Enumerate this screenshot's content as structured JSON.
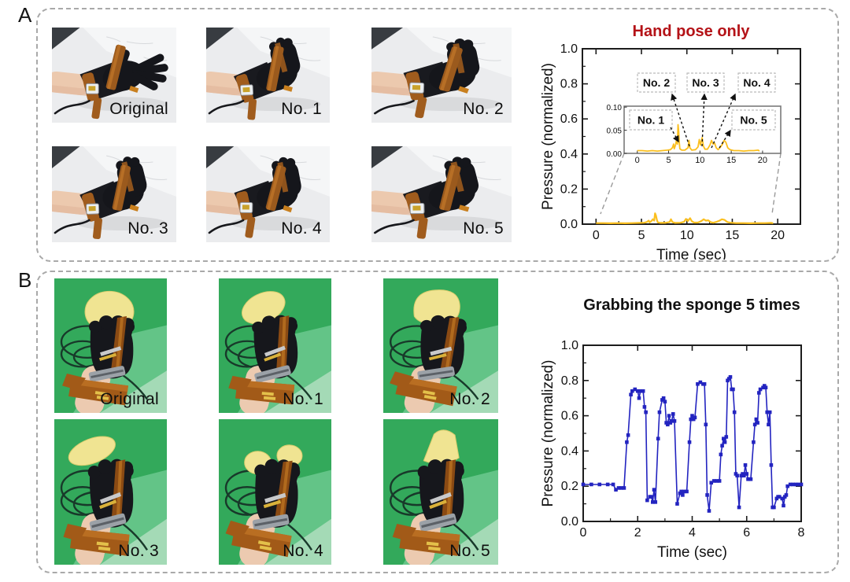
{
  "panel_a": {
    "label": "A",
    "photos": [
      "Original",
      "No. 1",
      "No. 2",
      "No. 3",
      "No. 4",
      "No. 5"
    ]
  },
  "panel_b": {
    "label": "B",
    "photos": [
      "Original",
      "No. 1",
      "No. 2",
      "No. 3",
      "No. 4",
      "No. 5"
    ]
  },
  "colors": {
    "panel_border": "#a9a9a9",
    "chart_a_line": "#fbbf1e",
    "chart_b_line": "#2324c0",
    "title_a_red": "#b41217",
    "title_b_black": "#111111"
  },
  "chart_data": [
    {
      "type": "line",
      "title": "Hand pose only",
      "title_color": "#b41217",
      "xlabel": "Time (sec)",
      "ylabel": "Pressure (normalized)",
      "xlim": [
        -1.5,
        22.5
      ],
      "ylim": [
        0,
        1
      ],
      "xticks": [
        "0",
        "5",
        "10",
        "15",
        "20"
      ],
      "yticks": [
        "0.0",
        "0.2",
        "0.4",
        "0.6",
        "0.8",
        "1.0"
      ],
      "line_color": "#fbbf1e",
      "points": [
        [
          0,
          0.006
        ],
        [
          0.8,
          0.006
        ],
        [
          1.6,
          0.005
        ],
        [
          2.4,
          0.006
        ],
        [
          3.2,
          0.005
        ],
        [
          4,
          0.006
        ],
        [
          4.8,
          0.007
        ],
        [
          5.3,
          0.008
        ],
        [
          5.6,
          0.012
        ],
        [
          5.8,
          0.02
        ],
        [
          5.9,
          0.01
        ],
        [
          6.1,
          0.018
        ],
        [
          6.25,
          0.028
        ],
        [
          6.4,
          0.02
        ],
        [
          6.5,
          0.062
        ],
        [
          6.6,
          0.048
        ],
        [
          6.7,
          0.025
        ],
        [
          6.8,
          0.01
        ],
        [
          7.1,
          0.007
        ],
        [
          7.6,
          0.007
        ],
        [
          8.1,
          0.012
        ],
        [
          8.25,
          0.028
        ],
        [
          8.4,
          0.012
        ],
        [
          8.7,
          0.007
        ],
        [
          9.3,
          0.008
        ],
        [
          9.7,
          0.014
        ],
        [
          9.9,
          0.03
        ],
        [
          10.1,
          0.018
        ],
        [
          10.35,
          0.034
        ],
        [
          10.55,
          0.016
        ],
        [
          10.8,
          0.009
        ],
        [
          11.2,
          0.009
        ],
        [
          11.6,
          0.018
        ],
        [
          11.85,
          0.028
        ],
        [
          12.1,
          0.02
        ],
        [
          12.35,
          0.022
        ],
        [
          12.6,
          0.012
        ],
        [
          12.9,
          0.008
        ],
        [
          13.3,
          0.014
        ],
        [
          13.6,
          0.02
        ],
        [
          13.85,
          0.028
        ],
        [
          14.15,
          0.024
        ],
        [
          14.45,
          0.012
        ],
        [
          14.8,
          0.008
        ],
        [
          15.4,
          0.006
        ],
        [
          16.2,
          0.006
        ],
        [
          17,
          0.005
        ],
        [
          17.8,
          0.006
        ],
        [
          18.6,
          0.006
        ],
        [
          19.3,
          0.007
        ],
        [
          19.5,
          0.005
        ]
      ],
      "inset": {
        "xlim": [
          -2.1,
          22.9
        ],
        "ylim": [
          0,
          0.102
        ],
        "xticks": [
          "0",
          "5",
          "10",
          "15",
          "20"
        ],
        "yticks": [
          "0.00",
          "0.05",
          "0.10"
        ],
        "annotations": [
          "No. 1",
          "No. 2",
          "No. 3",
          "No. 4",
          "No. 5"
        ]
      }
    },
    {
      "type": "line",
      "title": "Grabbing the sponge 5 times",
      "title_color": "#111111",
      "xlabel": "Time (sec)",
      "ylabel": "Pressure (normalized)",
      "xlim": [
        0,
        8
      ],
      "ylim": [
        0,
        1
      ],
      "xticks": [
        "0",
        "2",
        "4",
        "6",
        "8"
      ],
      "yticks": [
        "0.0",
        "0.2",
        "0.4",
        "0.6",
        "0.8",
        "1.0"
      ],
      "line_color": "#2324c0",
      "marker": "square",
      "points": [
        [
          0,
          0.21
        ],
        [
          0.3,
          0.21
        ],
        [
          0.6,
          0.21
        ],
        [
          0.9,
          0.21
        ],
        [
          1.1,
          0.21
        ],
        [
          1.2,
          0.18
        ],
        [
          1.3,
          0.19
        ],
        [
          1.4,
          0.19
        ],
        [
          1.5,
          0.19
        ],
        [
          1.6,
          0.45
        ],
        [
          1.65,
          0.49
        ],
        [
          1.75,
          0.72
        ],
        [
          1.8,
          0.74
        ],
        [
          1.9,
          0.75
        ],
        [
          2.0,
          0.74
        ],
        [
          2.05,
          0.7
        ],
        [
          2.1,
          0.74
        ],
        [
          2.2,
          0.74
        ],
        [
          2.25,
          0.65
        ],
        [
          2.3,
          0.62
        ],
        [
          2.35,
          0.12
        ],
        [
          2.45,
          0.14
        ],
        [
          2.5,
          0.14
        ],
        [
          2.55,
          0.11
        ],
        [
          2.6,
          0.18
        ],
        [
          2.65,
          0.11
        ],
        [
          2.75,
          0.47
        ],
        [
          2.8,
          0.62
        ],
        [
          2.9,
          0.69
        ],
        [
          2.95,
          0.7
        ],
        [
          3.0,
          0.68
        ],
        [
          3.05,
          0.56
        ],
        [
          3.1,
          0.55
        ],
        [
          3.15,
          0.6
        ],
        [
          3.2,
          0.56
        ],
        [
          3.25,
          0.57
        ],
        [
          3.3,
          0.61
        ],
        [
          3.35,
          0.57
        ],
        [
          3.45,
          0.1
        ],
        [
          3.55,
          0.16
        ],
        [
          3.6,
          0.17
        ],
        [
          3.65,
          0.15
        ],
        [
          3.7,
          0.17
        ],
        [
          3.8,
          0.17
        ],
        [
          3.9,
          0.45
        ],
        [
          3.95,
          0.58
        ],
        [
          4.0,
          0.6
        ],
        [
          4.05,
          0.58
        ],
        [
          4.1,
          0.59
        ],
        [
          4.2,
          0.78
        ],
        [
          4.3,
          0.79
        ],
        [
          4.4,
          0.78
        ],
        [
          4.45,
          0.78
        ],
        [
          4.5,
          0.55
        ],
        [
          4.55,
          0.15
        ],
        [
          4.62,
          0.06
        ],
        [
          4.7,
          0.22
        ],
        [
          4.8,
          0.23
        ],
        [
          4.9,
          0.23
        ],
        [
          5.0,
          0.23
        ],
        [
          5.05,
          0.38
        ],
        [
          5.1,
          0.43
        ],
        [
          5.15,
          0.47
        ],
        [
          5.2,
          0.45
        ],
        [
          5.25,
          0.48
        ],
        [
          5.3,
          0.8
        ],
        [
          5.35,
          0.81
        ],
        [
          5.4,
          0.82
        ],
        [
          5.45,
          0.75
        ],
        [
          5.5,
          0.75
        ],
        [
          5.55,
          0.62
        ],
        [
          5.6,
          0.27
        ],
        [
          5.65,
          0.26
        ],
        [
          5.72,
          0.08
        ],
        [
          5.8,
          0.26
        ],
        [
          5.85,
          0.27
        ],
        [
          5.9,
          0.26
        ],
        [
          5.95,
          0.32
        ],
        [
          6.0,
          0.27
        ],
        [
          6.05,
          0.24
        ],
        [
          6.1,
          0.24
        ],
        [
          6.15,
          0.24
        ],
        [
          6.25,
          0.45
        ],
        [
          6.3,
          0.55
        ],
        [
          6.35,
          0.58
        ],
        [
          6.4,
          0.56
        ],
        [
          6.45,
          0.73
        ],
        [
          6.5,
          0.75
        ],
        [
          6.6,
          0.76
        ],
        [
          6.65,
          0.77
        ],
        [
          6.7,
          0.76
        ],
        [
          6.75,
          0.62
        ],
        [
          6.8,
          0.55
        ],
        [
          6.85,
          0.62
        ],
        [
          6.9,
          0.32
        ],
        [
          6.95,
          0.08
        ],
        [
          7.0,
          0.08
        ],
        [
          7.1,
          0.13
        ],
        [
          7.15,
          0.14
        ],
        [
          7.2,
          0.14
        ],
        [
          7.3,
          0.13
        ],
        [
          7.35,
          0.09
        ],
        [
          7.4,
          0.14
        ],
        [
          7.45,
          0.15
        ],
        [
          7.5,
          0.2
        ],
        [
          7.6,
          0.21
        ],
        [
          7.7,
          0.21
        ],
        [
          7.8,
          0.21
        ],
        [
          7.9,
          0.21
        ],
        [
          8.0,
          0.21
        ]
      ]
    }
  ]
}
